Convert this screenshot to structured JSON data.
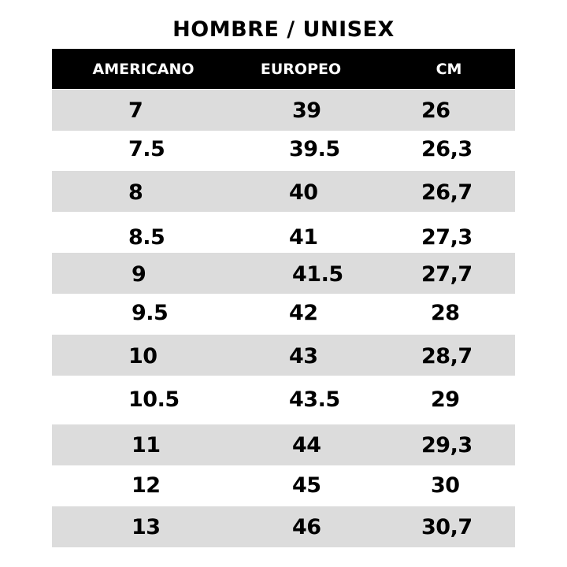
{
  "title": "HOMBRE / UNISEX",
  "columns": [
    "AMERICANO",
    "EUROPEO",
    "CM"
  ],
  "colors": {
    "header_bg": "#000000",
    "header_text": "#ffffff",
    "band": "#dcdcdc"
  },
  "rows": [
    {
      "us": "7",
      "eu": "39",
      "cm": "26",
      "shaded": true
    },
    {
      "us": "7.5",
      "eu": "39.5",
      "cm": "26,3",
      "shaded": false
    },
    {
      "us": "8",
      "eu": "40",
      "cm": "26,7",
      "shaded": true
    },
    {
      "us": "8.5",
      "eu": "41",
      "cm": "27,3",
      "shaded": false
    },
    {
      "us": "9",
      "eu": "41.5",
      "cm": "27,7",
      "shaded": true
    },
    {
      "us": "9.5",
      "eu": "42",
      "cm": "28",
      "shaded": false
    },
    {
      "us": "10",
      "eu": "43",
      "cm": "28,7",
      "shaded": true
    },
    {
      "us": "10.5",
      "eu": "43.5",
      "cm": "29",
      "shaded": false
    },
    {
      "us": "11",
      "eu": "44",
      "cm": "29,3",
      "shaded": true
    },
    {
      "us": "12",
      "eu": "45",
      "cm": "30",
      "shaded": false
    },
    {
      "us": "13",
      "eu": "46",
      "cm": "30,7",
      "shaded": true
    }
  ]
}
